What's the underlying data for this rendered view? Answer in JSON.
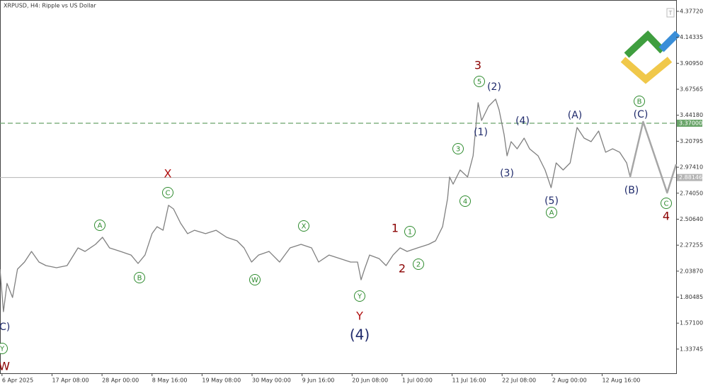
{
  "chart_data": {
    "type": "line",
    "title": "XRPUSD, H4: Ripple vs US Dollar",
    "xlim": [
      -0.04,
      13.48
    ],
    "ylim": [
      1.12,
      4.479
    ],
    "xticks": [
      {
        "value": 0,
        "label": "6 Apr 2025"
      },
      {
        "value": 1,
        "label": "17 Apr 08:00"
      },
      {
        "value": 2,
        "label": "28 Apr 00:00"
      },
      {
        "value": 3,
        "label": "8 May 16:00"
      },
      {
        "value": 4,
        "label": "19 May 08:00"
      },
      {
        "value": 5,
        "label": "30 May 00:00"
      },
      {
        "value": 6,
        "label": "9 Jun 16:00"
      },
      {
        "value": 7,
        "label": "20 Jun 08:00"
      },
      {
        "value": 8,
        "label": "1 Jul 00:00"
      },
      {
        "value": 9,
        "label": "11 Jul 16:00"
      },
      {
        "value": 10,
        "label": "22 Jul 08:00"
      },
      {
        "value": 11,
        "label": "2 Aug 00:00"
      },
      {
        "value": 12,
        "label": "12 Aug 16:00"
      }
    ],
    "yticks": [
      {
        "value": 4.3772,
        "label": "4.37720"
      },
      4.14335,
      {
        "value": 3.9095,
        "label": "3.90950"
      },
      3.67565,
      {
        "value": 3.4418,
        "label": "3.44180"
      },
      3.20795,
      {
        "value": 2.9741,
        "label": "2.97410"
      },
      {
        "value": 2.7405,
        "label": "2.74050"
      },
      {
        "value": 2.5064,
        "label": "2.50640"
      },
      2.27255,
      {
        "value": 2.0387,
        "label": "2.03870"
      },
      1.80485,
      {
        "value": 1.571,
        "label": "1.57100"
      },
      1.33745
    ],
    "series": [
      {
        "color": "#808080",
        "x": [
          -0.04,
          0.03,
          0.1,
          0.21,
          0.31,
          0.45,
          0.59,
          0.74,
          0.88,
          1.09,
          1.3,
          1.52,
          1.66,
          1.87,
          2.01,
          2.15,
          2.37,
          2.58,
          2.72,
          2.86,
          3.0,
          3.1,
          3.22,
          3.33,
          3.43,
          3.57,
          3.71,
          3.85,
          4.07,
          4.28,
          4.49,
          4.7,
          4.84,
          4.99,
          5.13,
          5.34,
          5.55,
          5.76,
          5.98,
          6.19,
          6.33,
          6.54,
          6.76,
          6.97,
          7.11,
          7.18,
          7.25,
          7.35,
          7.54,
          7.68,
          7.82,
          7.96,
          8.1,
          8.31,
          8.53,
          8.67,
          8.81,
          8.91,
          8.95,
          9.02,
          9.16,
          9.31,
          9.42,
          9.52,
          9.59,
          9.73,
          9.87,
          9.94,
          10.04,
          10.1,
          10.18,
          10.3,
          10.44,
          10.55,
          10.72,
          10.86,
          10.98,
          11.08,
          11.22,
          11.36,
          11.5,
          11.64,
          11.78,
          11.93,
          12.07,
          12.21,
          12.35,
          12.49,
          12.56
        ],
        "values": [
          2.057,
          1.674,
          1.929,
          1.802,
          2.057,
          2.121,
          2.216,
          2.121,
          2.089,
          2.07,
          2.089,
          2.248,
          2.216,
          2.28,
          2.344,
          2.248,
          2.216,
          2.184,
          2.108,
          2.184,
          2.376,
          2.439,
          2.407,
          2.631,
          2.599,
          2.471,
          2.376,
          2.407,
          2.376,
          2.407,
          2.344,
          2.312,
          2.248,
          2.121,
          2.184,
          2.216,
          2.121,
          2.248,
          2.28,
          2.248,
          2.121,
          2.184,
          2.152,
          2.121,
          2.121,
          1.961,
          2.057,
          2.184,
          2.152,
          2.089,
          2.184,
          2.248,
          2.216,
          2.248,
          2.28,
          2.312,
          2.439,
          2.694,
          2.886,
          2.822,
          2.949,
          2.886,
          3.077,
          3.555,
          3.395,
          3.523,
          3.587,
          3.491,
          3.268,
          3.077,
          3.204,
          3.14,
          3.236,
          3.14,
          3.077,
          2.949,
          2.79,
          3.013,
          2.949,
          3.013,
          3.332,
          3.236,
          3.204,
          3.3,
          3.109,
          3.14,
          3.109,
          3.013,
          2.886
        ]
      },
      {
        "color": "#a6a6a6",
        "x": [
          12.56,
          12.82,
          13.3,
          13.48
        ],
        "values": [
          2.886,
          3.383,
          2.745,
          3.0
        ]
      }
    ],
    "levels": [
      {
        "value": 3.37,
        "label": "3.37000",
        "color": "#6aa56a",
        "dashed": true
      },
      {
        "value": 2.88146,
        "label": "2.88146",
        "color": "#b5b5b5",
        "dashed": false
      }
    ],
    "annotations": [
      {
        "text": "(C)",
        "kind": "wave",
        "color": "#1f2a6b"
      },
      {
        "text": "Y",
        "kind": "circle",
        "color": "#2e8b2e"
      },
      {
        "text": "W",
        "kind": "degree",
        "color": "#8b0000"
      },
      {
        "text": "X",
        "kind": "degree",
        "color": "#b01010"
      },
      {
        "text": "C",
        "kind": "circle",
        "color": "#2e8b2e"
      },
      {
        "text": "A",
        "kind": "circle",
        "color": "#2e8b2e"
      },
      {
        "text": "B",
        "kind": "circle",
        "color": "#2e8b2e"
      },
      {
        "text": "W",
        "kind": "circle",
        "color": "#2e8b2e"
      },
      {
        "text": "X",
        "kind": "circle",
        "color": "#2e8b2e"
      },
      {
        "text": "Y",
        "kind": "circle",
        "color": "#2e8b2e"
      },
      {
        "text": "Y",
        "kind": "degree",
        "color": "#b01010"
      },
      {
        "text": "(4)",
        "kind": "wave",
        "color": "#1f2a6b"
      },
      {
        "text": "1",
        "kind": "degree",
        "color": "#8b0000"
      },
      {
        "text": "1",
        "kind": "circle",
        "color": "#2e8b2e"
      },
      {
        "text": "2",
        "kind": "degree",
        "color": "#8b0000"
      },
      {
        "text": "2",
        "kind": "circle",
        "color": "#2e8b2e"
      },
      {
        "text": "3",
        "kind": "circle",
        "color": "#2e8b2e"
      },
      {
        "text": "4",
        "kind": "circle",
        "color": "#2e8b2e"
      },
      {
        "text": "3",
        "kind": "degree",
        "color": "#8b0000"
      },
      {
        "text": "5",
        "kind": "circle",
        "color": "#2e8b2e"
      },
      {
        "text": "(2)",
        "kind": "wave",
        "color": "#1f2a6b"
      },
      {
        "text": "(1)",
        "kind": "wave",
        "color": "#1f2a6b"
      },
      {
        "text": "(3)",
        "kind": "wave",
        "color": "#1f2a6b"
      },
      {
        "text": "(4)",
        "kind": "wave",
        "color": "#1f2a6b"
      },
      {
        "text": "(5)",
        "kind": "wave",
        "color": "#1f2a6b"
      },
      {
        "text": "A",
        "kind": "circle",
        "color": "#2e8b2e"
      },
      {
        "text": "(A)",
        "kind": "wave",
        "color": "#1f2a6b"
      },
      {
        "text": "B",
        "kind": "circle",
        "color": "#2e8b2e"
      },
      {
        "text": "(C)",
        "kind": "wave",
        "color": "#1f2a6b"
      },
      {
        "text": "(B)",
        "kind": "wave",
        "color": "#1f2a6b"
      },
      {
        "text": "C",
        "kind": "circle",
        "color": "#2e8b2e"
      },
      {
        "text": "4",
        "kind": "degree",
        "color": "#8b0000"
      }
    ]
  }
}
